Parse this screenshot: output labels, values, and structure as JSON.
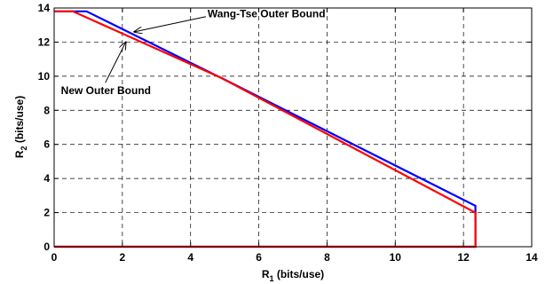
{
  "chart_data": {
    "type": "line",
    "xlabel": {
      "main": "R",
      "sub": "1",
      "rest": " (bits/use)"
    },
    "ylabel": {
      "main": "R",
      "sub": "2",
      "rest": " (bits/use)"
    },
    "xlim": [
      0,
      14
    ],
    "ylim": [
      0,
      14
    ],
    "xticks": [
      "0",
      "2",
      "4",
      "6",
      "8",
      "10",
      "12",
      "14"
    ],
    "yticks": [
      "0",
      "2",
      "4",
      "6",
      "8",
      "10",
      "12",
      "14"
    ],
    "grid": true,
    "series": [
      {
        "name": "Wang-Tse Outer Bound",
        "color": "#0000ff",
        "x": [
          0,
          0.95,
          4.9,
          12.35,
          12.35,
          0
        ],
        "y": [
          13.8,
          13.8,
          9.9,
          2.4,
          0,
          0
        ]
      },
      {
        "name": "New Outer Bound",
        "color": "#ff0000",
        "x": [
          0,
          0.55,
          4.9,
          12.35,
          12.35,
          0
        ],
        "y": [
          13.8,
          13.8,
          9.9,
          2.0,
          0,
          0
        ]
      }
    ],
    "annotations": [
      {
        "text": "Wang-Tse Outer Bound",
        "x": 4.5,
        "y": 13.65,
        "arrow_to": [
          2.35,
          12.6
        ]
      },
      {
        "text": "New Outer Bound",
        "x": 0.2,
        "y": 9.15,
        "arrow_to": [
          2.1,
          12.0
        ]
      }
    ]
  }
}
